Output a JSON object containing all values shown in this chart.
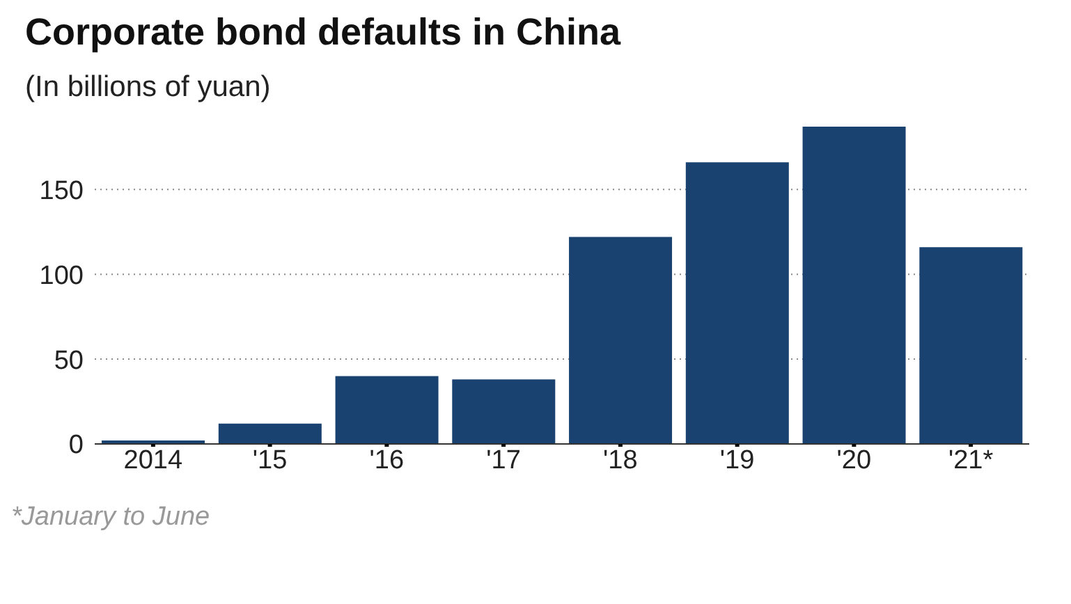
{
  "chart_data": {
    "type": "bar",
    "title": "Corporate bond defaults in China",
    "subtitle": "(In billions of yuan)",
    "categories": [
      "2014",
      "'15",
      "'16",
      "'17",
      "'18",
      "'19",
      "'20",
      "'21*"
    ],
    "values": [
      2,
      12,
      40,
      38,
      122,
      166,
      187,
      116
    ],
    "color": "#1a4270",
    "ylim": [
      0,
      187
    ],
    "yticks": [
      0,
      50,
      100,
      150
    ],
    "grid": "y",
    "annotations": [
      "*January to June"
    ]
  }
}
